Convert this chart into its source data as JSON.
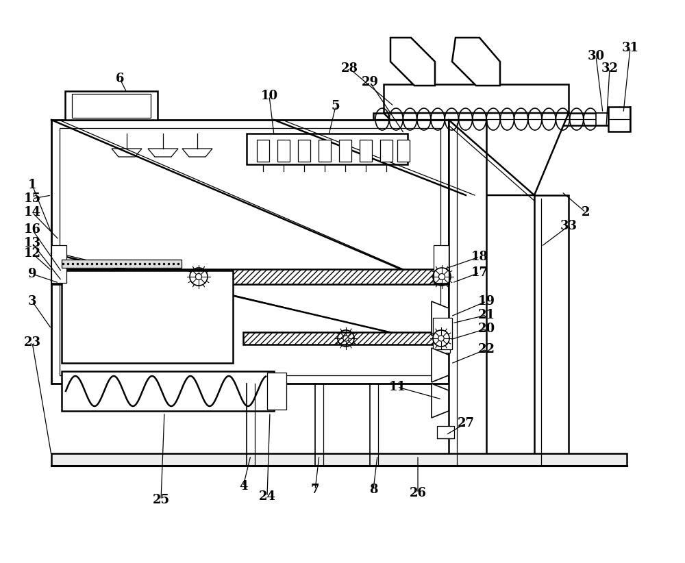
{
  "bg_color": "#ffffff",
  "fig_width": 10.0,
  "fig_height": 8.22,
  "lw": 1.8,
  "lw2": 1.2,
  "lw3": 0.9
}
